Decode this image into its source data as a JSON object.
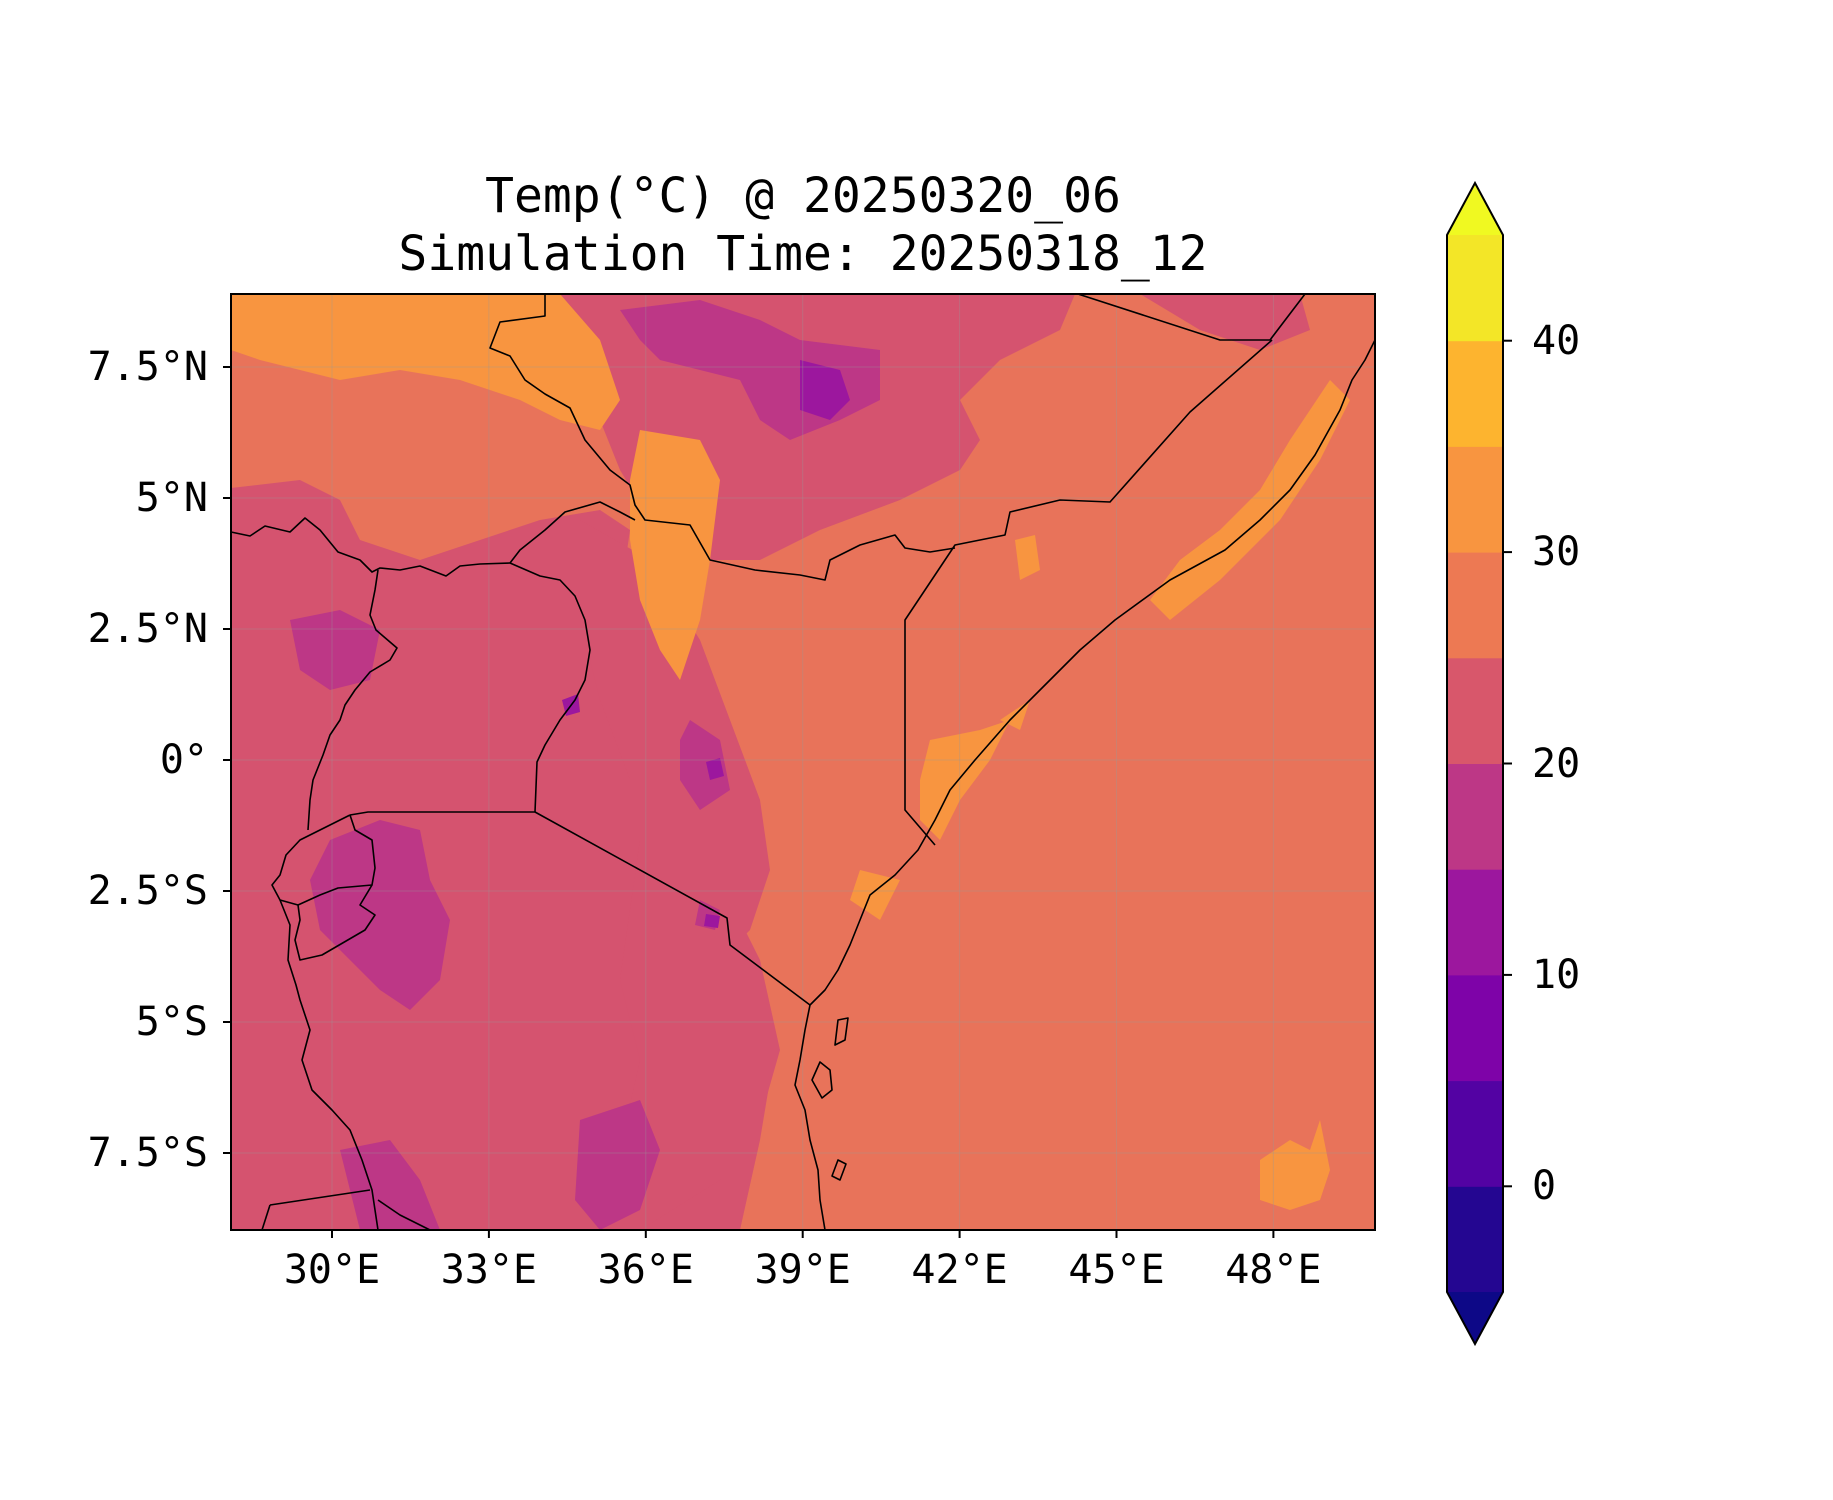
{
  "title": {
    "line1": "Temp(°C) @ 20250320_06",
    "line2": "Simulation Time: 20250318_12"
  },
  "x_ticks": [
    {
      "label": "30°E",
      "lon": 30
    },
    {
      "label": "33°E",
      "lon": 33
    },
    {
      "label": "36°E",
      "lon": 36
    },
    {
      "label": "39°E",
      "lon": 39
    },
    {
      "label": "42°E",
      "lon": 42
    },
    {
      "label": "45°E",
      "lon": 45
    },
    {
      "label": "48°E",
      "lon": 48
    }
  ],
  "y_ticks": [
    {
      "label": "7.5°N",
      "lat": 7.5
    },
    {
      "label": "5°N",
      "lat": 5
    },
    {
      "label": "2.5°N",
      "lat": 2.5
    },
    {
      "label": "0°",
      "lat": 0
    },
    {
      "label": "2.5°S",
      "lat": -2.5
    },
    {
      "label": "5°S",
      "lat": -5
    },
    {
      "label": "7.5°S",
      "lat": -7.5
    }
  ],
  "colorbar": {
    "ticks": [
      0,
      10,
      20,
      30,
      40
    ],
    "levels": [
      -5,
      0,
      5,
      10,
      15,
      20,
      25,
      30,
      35,
      40,
      45
    ],
    "extend": "both",
    "colors": [
      "#0d0887",
      "#1f0887",
      "#5302a3",
      "#7e03a8",
      "#a01b9b",
      "#bf3984",
      "#d5536f",
      "#e56b5d",
      "#f89540",
      "#fdb42f",
      "#f0f921"
    ],
    "segment_colors": [
      "#240691",
      "#5302a3",
      "#7e03a8",
      "#9c179e",
      "#bd3786",
      "#d8576b",
      "#ed7953",
      "#f89540",
      "#fdb42f",
      "#f3e627"
    ],
    "under_color": "#0d0887",
    "over_color": "#f0f921"
  },
  "map": {
    "lon_range": [
      28,
      49.9
    ],
    "lat_range": [
      -9,
      8.9
    ],
    "gridlines": true,
    "colors": {
      "background_field": "#e8735a",
      "mid_warm": "#d5536f",
      "cool_highlands": "#bd3786",
      "cold_peaks": "#9c179e",
      "hot_lowlands": "#f89540",
      "border_line": "#000000"
    }
  }
}
